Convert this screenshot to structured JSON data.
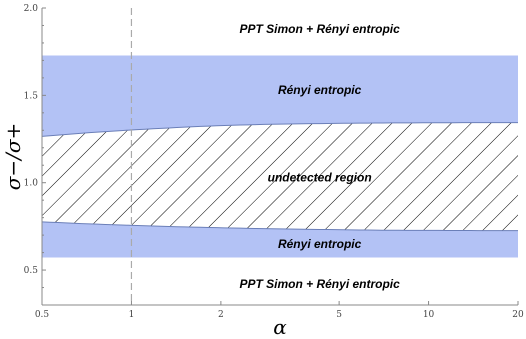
{
  "chart_data": {
    "type": "area",
    "title": "",
    "xlabel": "α",
    "ylabel": "σ−/σ+",
    "x_scale": "log",
    "xlim": [
      0.5,
      20
    ],
    "ylim": [
      0.3,
      2.0
    ],
    "x_ticks": [
      0.5,
      1,
      2,
      5,
      10,
      20
    ],
    "x_tick_labels": [
      "0.5",
      "1",
      "2",
      "5",
      "10",
      "20"
    ],
    "y_ticks": [
      0.5,
      1.0,
      1.5,
      2.0
    ],
    "y_tick_labels": [
      "0.5",
      "1.0",
      "1.5",
      "2.0"
    ],
    "grid": false,
    "reference_line": {
      "axis": "x",
      "value": 1,
      "style": "dashed"
    },
    "bands": [
      {
        "label": "Rényi entropic",
        "y_from": 1.728,
        "y_to_curve": "undetected_upper"
      },
      {
        "label": "Rényi entropic",
        "y_to": 0.572,
        "y_from_curve": "undetected_lower"
      }
    ],
    "undetected_region": {
      "label": "undetected region",
      "upper": {
        "x": [
          0.5,
          0.7,
          1,
          1.5,
          2,
          3,
          5,
          7,
          10,
          15,
          20
        ],
        "y": [
          1.265,
          1.285,
          1.302,
          1.318,
          1.327,
          1.335,
          1.34,
          1.342,
          1.343,
          1.344,
          1.344
        ]
      },
      "lower": {
        "x": [
          0.5,
          0.7,
          1,
          1.5,
          2,
          3,
          5,
          7,
          10,
          15,
          20
        ],
        "y": [
          0.776,
          0.765,
          0.756,
          0.747,
          0.742,
          0.736,
          0.731,
          0.728,
          0.727,
          0.726,
          0.726
        ]
      }
    },
    "annotations": [
      {
        "text": "PPT Simon + Rényi entropic",
        "x": 4.3,
        "y": 1.88
      },
      {
        "text": "Rényi entropic",
        "x": 4.3,
        "y": 1.53
      },
      {
        "text": "undetected region",
        "x": 4.3,
        "y": 1.03
      },
      {
        "text": "Rényi entropic",
        "x": 4.3,
        "y": 0.65
      },
      {
        "text": "PPT Simon + Rényi entropic",
        "x": 4.3,
        "y": 0.42
      }
    ],
    "colors": {
      "band": "#b3c2f5",
      "hatch": "#000000",
      "reference_line": "#aaaaaa",
      "axis": "#888888"
    }
  }
}
